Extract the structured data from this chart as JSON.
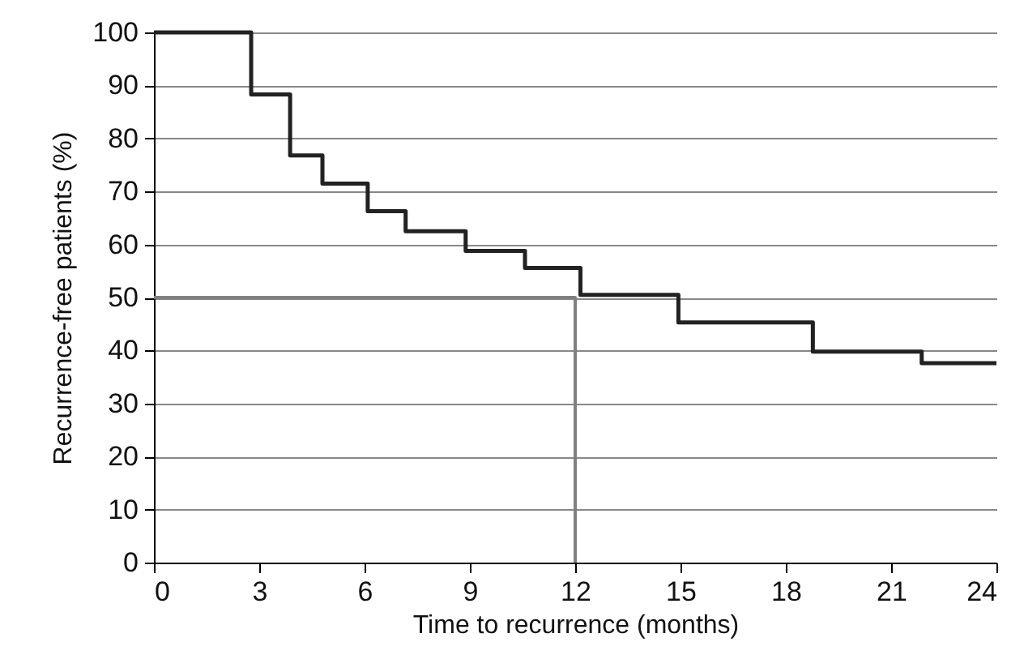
{
  "chart_data": {
    "type": "step",
    "xlabel": "Time to recurrence (months)",
    "ylabel": "Recurrence-free patients (%)",
    "xlim": [
      0,
      24
    ],
    "xticks": [
      0,
      3,
      6,
      9,
      12,
      15,
      18,
      21,
      24
    ],
    "ylim": [
      0,
      100
    ],
    "yticks": [
      0,
      10,
      20,
      30,
      40,
      50,
      60,
      70,
      80,
      90,
      100
    ],
    "grid": "y",
    "line_style": "solid",
    "marker": "none",
    "series": [
      {
        "type": "step",
        "color": "#222222",
        "x": [
          0,
          2.77,
          3.88,
          4.8,
          6.09,
          7.17,
          8.88,
          10.57,
          12.15,
          14.94,
          18.77,
          21.87,
          24
        ],
        "values": [
          100,
          88.3,
          76.8,
          71.5,
          66.3,
          62.5,
          58.8,
          55.6,
          50.5,
          45.3,
          39.8,
          37.6,
          37.6
        ]
      },
      {
        "type": "line",
        "color": "#808080",
        "x": [
          0,
          12,
          12
        ],
        "values": [
          50,
          50,
          0
        ]
      }
    ]
  }
}
